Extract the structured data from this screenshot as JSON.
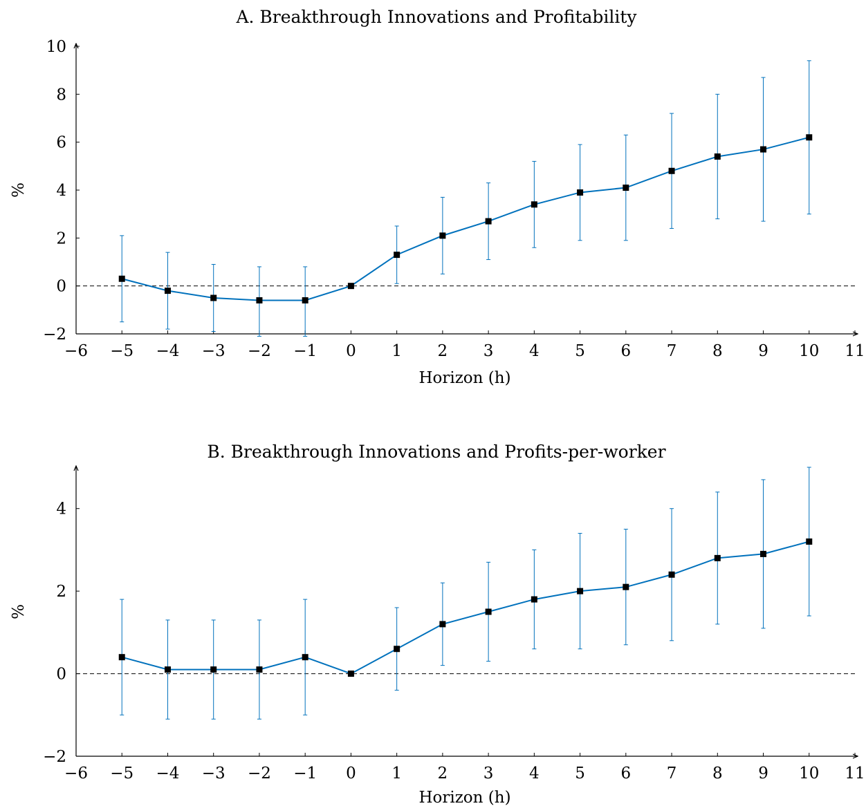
{
  "chart_data": [
    {
      "type": "line",
      "title": "A. Breakthrough Innovations and Profitability",
      "xlabel": "Horizon (h)",
      "ylabel": "%",
      "xlim": [
        -6,
        11
      ],
      "ylim": [
        -2,
        10
      ],
      "xticks": [
        -6,
        -5,
        -4,
        -3,
        -2,
        -1,
        0,
        1,
        2,
        3,
        4,
        5,
        6,
        7,
        8,
        9,
        10,
        11
      ],
      "xtick_labels": [
        "−6",
        "−5",
        "−4",
        "−3",
        "−2",
        "−1",
        "0",
        "1",
        "2",
        "3",
        "4",
        "5",
        "6",
        "7",
        "8",
        "9",
        "10",
        "11"
      ],
      "yticks": [
        -2,
        0,
        2,
        4,
        6,
        8,
        10
      ],
      "ytick_labels": [
        "−2",
        "0",
        "2",
        "4",
        "6",
        "8",
        "10"
      ],
      "x": [
        -5,
        -4,
        -3,
        -2,
        -1,
        0,
        1,
        2,
        3,
        4,
        5,
        6,
        7,
        8,
        9,
        10
      ],
      "y": [
        0.3,
        -0.2,
        -0.5,
        -0.6,
        -0.6,
        0.0,
        1.3,
        2.1,
        2.7,
        3.4,
        3.9,
        4.1,
        4.8,
        5.4,
        5.7,
        6.2
      ],
      "ci_lower": [
        -1.5,
        -1.8,
        -1.9,
        -2.1,
        -2.1,
        0.0,
        0.1,
        0.5,
        1.1,
        1.6,
        1.9,
        1.9,
        2.4,
        2.8,
        2.7,
        3.0
      ],
      "ci_upper": [
        2.1,
        1.4,
        0.9,
        0.8,
        0.8,
        0.0,
        2.5,
        3.7,
        4.3,
        5.2,
        5.9,
        6.3,
        7.2,
        8.0,
        8.7,
        9.4
      ],
      "reference_line": 0,
      "grid": false,
      "line_color": "#0071bc",
      "marker_color": "#000000"
    },
    {
      "type": "line",
      "title": "B. Breakthrough Innovations and Profits-per-worker",
      "xlabel": "Horizon (h)",
      "ylabel": "%",
      "xlim": [
        -6,
        11
      ],
      "ylim": [
        -2,
        5
      ],
      "xticks": [
        -6,
        -5,
        -4,
        -3,
        -2,
        -1,
        0,
        1,
        2,
        3,
        4,
        5,
        6,
        7,
        8,
        9,
        10,
        11
      ],
      "xtick_labels": [
        "−6",
        "−5",
        "−4",
        "−3",
        "−2",
        "−1",
        "0",
        "1",
        "2",
        "3",
        "4",
        "5",
        "6",
        "7",
        "8",
        "9",
        "10",
        "11"
      ],
      "yticks": [
        -2,
        0,
        2,
        4
      ],
      "ytick_labels": [
        "−2",
        "0",
        "2",
        "4"
      ],
      "x": [
        -5,
        -4,
        -3,
        -2,
        -1,
        0,
        1,
        2,
        3,
        4,
        5,
        6,
        7,
        8,
        9,
        10
      ],
      "y": [
        0.4,
        0.1,
        0.1,
        0.1,
        0.4,
        0.0,
        0.6,
        1.2,
        1.5,
        1.8,
        2.0,
        2.1,
        2.4,
        2.8,
        2.9,
        3.2
      ],
      "ci_lower": [
        -1.0,
        -1.1,
        -1.1,
        -1.1,
        -1.0,
        0.0,
        -0.4,
        0.2,
        0.3,
        0.6,
        0.6,
        0.7,
        0.8,
        1.2,
        1.1,
        1.4
      ],
      "ci_upper": [
        1.8,
        1.3,
        1.3,
        1.3,
        1.8,
        0.0,
        1.6,
        2.2,
        2.7,
        3.0,
        3.4,
        3.5,
        4.0,
        4.4,
        4.7,
        5.0
      ],
      "reference_line": 0,
      "grid": false,
      "line_color": "#0071bc",
      "marker_color": "#000000"
    }
  ]
}
